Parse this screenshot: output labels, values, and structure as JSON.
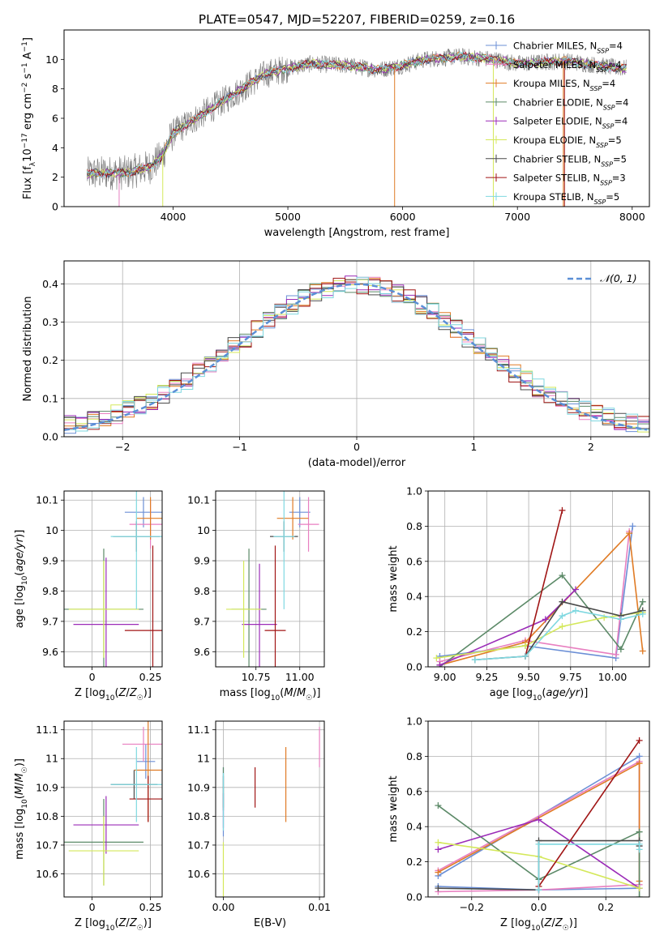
{
  "page_title": "PLATE=0547, MJD=52207, FIBERID=0259, z=0.16",
  "colors": {
    "Chabrier MILES": "#6b8fd6",
    "Salpeter MILES": "#e87fc0",
    "Kroupa MILES": "#e07b25",
    "Chabrier ELODIE": "#5c8a68",
    "Salpeter ELODIE": "#9b2cb8",
    "Kroupa ELODIE": "#d4e85a",
    "Chabrier STELIB": "#4a4a4a",
    "Salpeter STELIB": "#a01515",
    "Kroupa STELIB": "#7fd8e0",
    "data": "#7a7a7a",
    "gaussian": "#5b8fd6"
  },
  "chart_data": [
    {
      "id": "spectrum",
      "type": "line",
      "title": "PLATE=0547, MJD=52207, FIBERID=0259, z=0.16",
      "xlabel": "wavelength [Angstrom, rest frame]",
      "ylabel": "Flux [f_λ10^-17 erg cm^-2 s^-1 A^-1]",
      "xlim": [
        3050,
        8150
      ],
      "ylim": [
        0,
        12
      ],
      "xticks": [
        4000,
        5000,
        6000,
        7000,
        8000
      ],
      "yticks": [
        0,
        2,
        4,
        6,
        8,
        10
      ],
      "legend_position": "right",
      "legend": [
        {
          "name": "Chabrier MILES",
          "nssp": "4"
        },
        {
          "name": "Salpeter MILES",
          "nssp": "4"
        },
        {
          "name": "Kroupa MILES",
          "nssp": "4"
        },
        {
          "name": "Chabrier ELODIE",
          "nssp": "4"
        },
        {
          "name": "Salpeter ELODIE",
          "nssp": "4"
        },
        {
          "name": "Kroupa ELODIE",
          "nssp": "5"
        },
        {
          "name": "Chabrier STELIB",
          "nssp": "5"
        },
        {
          "name": "Salpeter STELIB",
          "nssp": "3"
        },
        {
          "name": "Kroupa STELIB",
          "nssp": "5"
        }
      ],
      "continuum": {
        "x": [
          3250,
          3400,
          3600,
          3800,
          3900,
          4000,
          4200,
          4400,
          4600,
          4800,
          5000,
          5200,
          5500,
          5800,
          6000,
          6200,
          6500,
          6800,
          7000,
          7200,
          7400,
          7600,
          7900
        ],
        "y": [
          2.2,
          2.3,
          2.3,
          2.7,
          3.4,
          5.0,
          6.0,
          7.0,
          8.0,
          9.0,
          9.4,
          9.7,
          9.6,
          9.3,
          9.6,
          10.0,
          10.2,
          10.0,
          9.7,
          9.8,
          9.9,
          9.7,
          9.4
        ]
      }
    },
    {
      "id": "residuals",
      "type": "step",
      "xlabel": "(data-model)/error",
      "ylabel": "Normed distribution",
      "xlim": [
        -2.5,
        2.5
      ],
      "ylim": [
        0,
        0.46
      ],
      "xticks": [
        -2,
        -1,
        0,
        1,
        2
      ],
      "xtick_labels": [
        "−2",
        "−1",
        "0",
        "1",
        "2"
      ],
      "yticks": [
        0.0,
        0.1,
        0.2,
        0.3,
        0.4
      ],
      "grid": true,
      "legend": "𝒩(0, 1)",
      "gaussian": {
        "mean": 0,
        "sigma": 1
      }
    },
    {
      "id": "age_vs_Z",
      "type": "errorbar",
      "xlabel": "Z [log₁₀(Z/Z☉)]",
      "ylabel": "age  [log₁₀(age/yr)]",
      "xlim": [
        -0.12,
        0.3
      ],
      "ylim": [
        9.55,
        10.13
      ],
      "xticks": [
        0.0,
        0.25
      ],
      "yticks": [
        9.6,
        9.7,
        9.8,
        9.9,
        10.0,
        10.1
      ],
      "grid": true,
      "points": [
        {
          "model": "Chabrier MILES",
          "x": 0.22,
          "xerr": 0.08,
          "y": 10.06,
          "yerr": 0.05
        },
        {
          "model": "Salpeter MILES",
          "x": 0.25,
          "xerr": 0.09,
          "y": 10.02,
          "yerr": 0.08
        },
        {
          "model": "Kroupa MILES",
          "x": 0.25,
          "xerr": 0.06,
          "y": 10.04,
          "yerr": 0.07
        },
        {
          "model": "Chabrier ELODIE",
          "x": 0.05,
          "xerr": 0.17,
          "y": 9.74,
          "yerr": 0.2
        },
        {
          "model": "Salpeter ELODIE",
          "x": 0.06,
          "xerr": 0.14,
          "y": 9.69,
          "yerr": 0.22
        },
        {
          "model": "Kroupa ELODIE",
          "x": 0.05,
          "xerr": 0.15,
          "y": 9.74,
          "yerr": 0.16
        },
        {
          "model": "Chabrier STELIB",
          "x": 0.19,
          "xerr": 0.1,
          "y": 9.98,
          "yerr": 0.05
        },
        {
          "model": "Salpeter STELIB",
          "x": 0.26,
          "xerr": 0.12,
          "y": 9.67,
          "yerr": 0.28
        },
        {
          "model": "Kroupa STELIB",
          "x": 0.19,
          "xerr": 0.11,
          "y": 9.98,
          "yerr": 0.24
        }
      ]
    },
    {
      "id": "age_vs_mass",
      "type": "errorbar",
      "xlabel": "mass [log₁₀(M/M☉)]",
      "xlim": [
        10.52,
        11.14
      ],
      "ylim": [
        9.55,
        10.13
      ],
      "xticks": [
        10.75,
        11.0
      ],
      "xtick_labels": [
        "10.75",
        "11.00"
      ],
      "yticks": [
        9.6,
        9.7,
        9.8,
        9.9,
        10.0,
        10.1
      ],
      "grid": true,
      "points": [
        {
          "model": "Chabrier MILES",
          "x": 11.0,
          "xerr": 0.06,
          "y": 10.06,
          "yerr": 0.05
        },
        {
          "model": "Salpeter MILES",
          "x": 11.05,
          "xerr": 0.06,
          "y": 10.02,
          "yerr": 0.09
        },
        {
          "model": "Kroupa MILES",
          "x": 10.96,
          "xerr": 0.09,
          "y": 10.04,
          "yerr": 0.07
        },
        {
          "model": "Chabrier ELODIE",
          "x": 10.71,
          "xerr": 0.1,
          "y": 9.74,
          "yerr": 0.2
        },
        {
          "model": "Salpeter ELODIE",
          "x": 10.77,
          "xerr": 0.1,
          "y": 9.69,
          "yerr": 0.2
        },
        {
          "model": "Kroupa ELODIE",
          "x": 10.68,
          "xerr": 0.1,
          "y": 9.74,
          "yerr": 0.16
        },
        {
          "model": "Chabrier STELIB",
          "x": 10.91,
          "xerr": 0.08,
          "y": 9.98,
          "yerr": 0.05
        },
        {
          "model": "Salpeter STELIB",
          "x": 10.86,
          "xerr": 0.06,
          "y": 9.67,
          "yerr": 0.28
        },
        {
          "model": "Kroupa STELIB",
          "x": 10.91,
          "xerr": 0.06,
          "y": 9.98,
          "yerr": 0.24
        }
      ]
    },
    {
      "id": "massweight_vs_age",
      "type": "line",
      "xlabel": "age  [log₁₀(age/yr)]",
      "ylabel": "mass weight",
      "xlim": [
        8.9,
        10.22
      ],
      "ylim": [
        0,
        1.0
      ],
      "xticks": [
        9.0,
        9.25,
        9.5,
        9.75,
        10.0
      ],
      "xtick_labels": [
        "9.00",
        "9.25",
        "9.50",
        "9.75",
        "10.00"
      ],
      "yticks": [
        0.0,
        0.2,
        0.4,
        0.6,
        0.8,
        1.0
      ],
      "grid": true,
      "series": [
        {
          "model": "Chabrier MILES",
          "x": [
            8.97,
            9.48,
            10.02,
            10.12
          ],
          "y": [
            0.06,
            0.12,
            0.05,
            0.8
          ]
        },
        {
          "model": "Salpeter MILES",
          "x": [
            8.97,
            9.48,
            10.02,
            10.1
          ],
          "y": [
            0.03,
            0.15,
            0.07,
            0.77
          ]
        },
        {
          "model": "Kroupa MILES",
          "x": [
            8.97,
            9.48,
            10.1,
            10.18
          ],
          "y": [
            0.01,
            0.14,
            0.76,
            0.09
          ]
        },
        {
          "model": "Chabrier ELODIE",
          "x": [
            8.97,
            9.7,
            10.05,
            10.18
          ],
          "y": [
            0.0,
            0.52,
            0.1,
            0.37
          ]
        },
        {
          "model": "Salpeter ELODIE",
          "x": [
            8.97,
            9.6,
            9.78
          ],
          "y": [
            0.01,
            0.27,
            0.44
          ]
        },
        {
          "model": "Kroupa ELODIE",
          "x": [
            8.95,
            9.48,
            9.7,
            9.95,
            10.18
          ],
          "y": [
            0.05,
            0.12,
            0.23,
            0.28,
            0.31
          ]
        },
        {
          "model": "Chabrier STELIB",
          "x": [
            9.18,
            9.48,
            9.7,
            10.05,
            10.18
          ],
          "y": [
            0.04,
            0.06,
            0.37,
            0.29,
            0.32
          ]
        },
        {
          "model": "Salpeter STELIB",
          "x": [
            9.48,
            9.7
          ],
          "y": [
            0.06,
            0.89
          ]
        },
        {
          "model": "Kroupa STELIB",
          "x": [
            9.18,
            9.48,
            9.7,
            9.78,
            10.05,
            10.18
          ],
          "y": [
            0.04,
            0.06,
            0.29,
            0.32,
            0.27,
            0.3
          ]
        }
      ]
    },
    {
      "id": "mass_vs_Z",
      "type": "errorbar",
      "xlabel": "Z [log₁₀(Z/Z☉)]",
      "ylabel": "mass [log₁₀(M/M☉)]",
      "xlim": [
        -0.12,
        0.3
      ],
      "ylim": [
        10.52,
        11.13
      ],
      "xticks": [
        0.0,
        0.25
      ],
      "yticks": [
        10.6,
        10.7,
        10.8,
        10.9,
        11.0,
        11.1
      ],
      "grid": true,
      "points": [
        {
          "model": "Chabrier MILES",
          "x": 0.23,
          "xerr": 0.04,
          "y": 10.99,
          "yerr": 0.06
        },
        {
          "model": "Salpeter MILES",
          "x": 0.22,
          "xerr": 0.09,
          "y": 11.05,
          "yerr": 0.06
        },
        {
          "model": "Kroupa MILES",
          "x": 0.24,
          "xerr": 0.06,
          "y": 10.96,
          "yerr": 0.18
        },
        {
          "model": "Chabrier ELODIE",
          "x": 0.05,
          "xerr": 0.17,
          "y": 10.71,
          "yerr": 0.15
        },
        {
          "model": "Salpeter ELODIE",
          "x": 0.06,
          "xerr": 0.14,
          "y": 10.77,
          "yerr": 0.1
        },
        {
          "model": "Kroupa ELODIE",
          "x": 0.05,
          "xerr": 0.15,
          "y": 10.68,
          "yerr": 0.12
        },
        {
          "model": "Chabrier STELIB",
          "x": 0.18,
          "xerr": 0.1,
          "y": 10.91,
          "yerr": 0.05
        },
        {
          "model": "Salpeter STELIB",
          "x": 0.24,
          "xerr": 0.08,
          "y": 10.86,
          "yerr": 0.08
        },
        {
          "model": "Kroupa STELIB",
          "x": 0.19,
          "xerr": 0.11,
          "y": 10.91,
          "yerr": 0.13
        }
      ]
    },
    {
      "id": "mass_vs_ebv",
      "type": "errorbar",
      "xlabel": "E(B-V)",
      "xlim": [
        -0.0008,
        0.0105
      ],
      "ylim": [
        10.52,
        11.13
      ],
      "xticks": [
        0.0,
        0.01
      ],
      "xtick_labels": [
        "0.00",
        "0.01"
      ],
      "yticks": [
        10.6,
        10.7,
        10.8,
        10.9,
        11.0,
        11.1
      ],
      "grid": true,
      "points": [
        {
          "model": "Chabrier MILES",
          "x": 0.0,
          "y": 10.85,
          "yerr": 0.12
        },
        {
          "model": "Salpeter MILES",
          "x": 0.01,
          "y": 11.04,
          "yerr": 0.07
        },
        {
          "model": "Kroupa MILES",
          "x": 0.0065,
          "y": 10.91,
          "yerr": 0.13
        },
        {
          "model": "Chabrier ELODIE",
          "x": 0.0,
          "y": 10.9,
          "yerr": 0.07
        },
        {
          "model": "Salpeter ELODIE",
          "x": 0.0,
          "y": 10.82,
          "yerr": 0.06
        },
        {
          "model": "Kroupa ELODIE",
          "x": 0.0,
          "y": 10.6,
          "yerr": 0.11
        },
        {
          "model": "Chabrier STELIB",
          "x": 0.0,
          "y": 10.88,
          "yerr": 0.06
        },
        {
          "model": "Salpeter STELIB",
          "x": 0.0033,
          "y": 10.9,
          "yerr": 0.07
        },
        {
          "model": "Kroupa STELIB",
          "x": 0.0,
          "y": 10.85,
          "yerr": 0.1
        }
      ]
    },
    {
      "id": "massweight_vs_Z",
      "type": "line",
      "xlabel": "Z [log₁₀(Z/Z☉)]",
      "ylabel": "mass weight",
      "xlim": [
        -0.33,
        0.33
      ],
      "ylim": [
        0,
        1.0
      ],
      "xticks": [
        -0.2,
        0.0,
        0.2
      ],
      "xtick_labels": [
        "−0.2",
        "0.0",
        "0.2"
      ],
      "yticks": [
        0.0,
        0.2,
        0.4,
        0.6,
        0.8,
        1.0
      ],
      "grid": true,
      "series": [
        {
          "model": "Chabrier MILES",
          "x": [
            -0.3,
            0.3,
            0.3,
            0.0,
            -0.3
          ],
          "y": [
            0.12,
            0.8,
            0.05,
            0.04,
            0.06
          ]
        },
        {
          "model": "Salpeter MILES",
          "x": [
            -0.3,
            0.3,
            0.3,
            0.0,
            -0.3
          ],
          "y": [
            0.15,
            0.77,
            0.07,
            0.04,
            0.03
          ]
        },
        {
          "model": "Kroupa MILES",
          "x": [
            -0.3,
            0.3,
            0.3
          ],
          "y": [
            0.14,
            0.76,
            0.09
          ]
        },
        {
          "model": "Chabrier ELODIE",
          "x": [
            -0.3,
            0.0,
            0.3,
            0.3
          ],
          "y": [
            0.52,
            0.1,
            0.37,
            0.0
          ]
        },
        {
          "model": "Salpeter ELODIE",
          "x": [
            -0.3,
            0.0,
            0.3
          ],
          "y": [
            0.27,
            0.44,
            0.05
          ]
        },
        {
          "model": "Kroupa ELODIE",
          "x": [
            -0.3,
            0.0,
            0.3
          ],
          "y": [
            0.31,
            0.23,
            0.05
          ]
        },
        {
          "model": "Chabrier STELIB",
          "x": [
            -0.3,
            0.0,
            0.0,
            0.3,
            0.3
          ],
          "y": [
            0.05,
            0.04,
            0.32,
            0.32,
            0.29
          ]
        },
        {
          "model": "Salpeter STELIB",
          "x": [
            0.0,
            0.3
          ],
          "y": [
            0.06,
            0.89
          ]
        },
        {
          "model": "Kroupa STELIB",
          "x": [
            0.0,
            0.0,
            0.3,
            0.3
          ],
          "y": [
            0.04,
            0.3,
            0.3,
            0.27
          ]
        }
      ]
    }
  ]
}
